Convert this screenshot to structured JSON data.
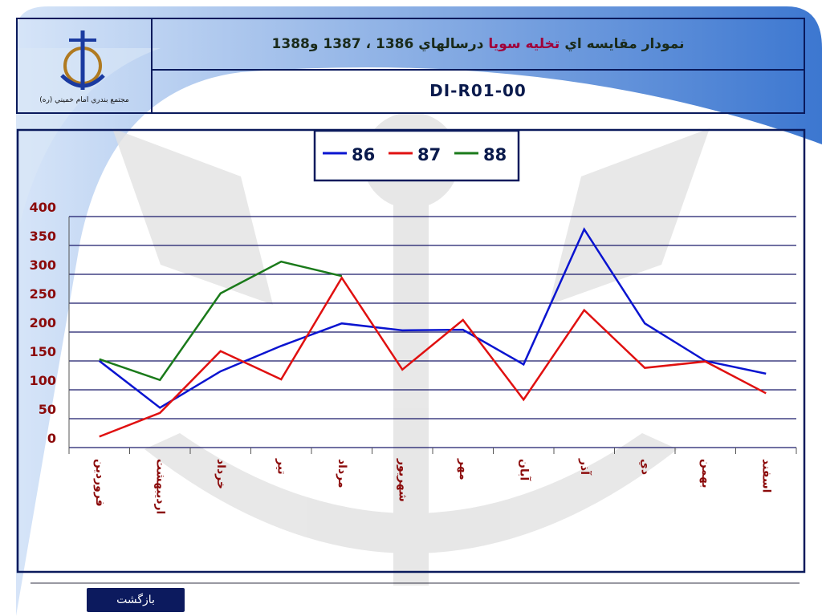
{
  "header": {
    "title_parts": [
      "نمودار مقايسه اي",
      "تخليه سويا",
      "درسالهاي 1386 ، 1387 و1388"
    ],
    "code": "DI-R01-00",
    "logo_caption": "مجتمع بندري امام خميني (ره)"
  },
  "chart_data": {
    "type": "line",
    "categories": [
      "فروردين",
      "ارديبهشت",
      "خرداد",
      "تير",
      "مرداد",
      "شهريور",
      "مهر",
      "آبان",
      "آذر",
      "دي",
      "بهمن",
      "اسفند"
    ],
    "series": [
      {
        "name": "86",
        "color": "#0a14d0",
        "values": [
          150,
          69,
          132,
          176,
          215,
          203,
          204,
          144,
          378,
          215,
          150,
          128
        ]
      },
      {
        "name": "87",
        "color": "#e01010",
        "values": [
          19,
          60,
          167,
          118,
          294,
          135,
          221,
          83,
          238,
          138,
          149,
          94
        ]
      },
      {
        "name": "88",
        "color": "#1a7a1a",
        "values": [
          153,
          117,
          267,
          322,
          297,
          null,
          null,
          null,
          null,
          null,
          null,
          null
        ]
      }
    ],
    "ylim": [
      0,
      400
    ],
    "yticks": [
      0,
      50,
      100,
      150,
      200,
      250,
      300,
      350,
      400
    ],
    "grid": true
  },
  "footer": {
    "back_button": "بازگشت"
  }
}
